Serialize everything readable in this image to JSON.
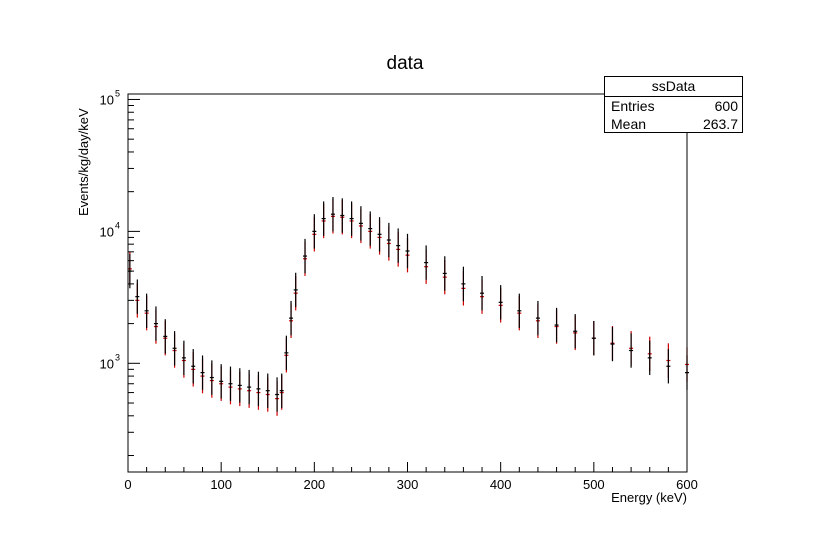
{
  "chart_data": {
    "type": "scatter",
    "title": "data",
    "xlabel": "Energy (keV)",
    "ylabel": "Events/kg/day/keV",
    "xlim": [
      0,
      600
    ],
    "ylim": [
      150,
      110000
    ],
    "yscale": "log",
    "x_ticks": [
      0,
      100,
      200,
      300,
      400,
      500,
      600
    ],
    "x_tick_labels": [
      "0",
      "100",
      "200",
      "300",
      "400",
      "500",
      "600"
    ],
    "y_ticks": [
      1000,
      10000,
      100000
    ],
    "y_tick_labels": [
      "10",
      "10",
      "10"
    ],
    "y_tick_exponents": [
      "3",
      "4",
      "5"
    ],
    "grid": false,
    "marker": "error-bar",
    "series": [
      {
        "color": "#000000",
        "points": [
          {
            "x": 2,
            "y": 5000
          },
          {
            "x": 10,
            "y": 3200
          },
          {
            "x": 20,
            "y": 2500
          },
          {
            "x": 30,
            "y": 2000
          },
          {
            "x": 40,
            "y": 1600
          },
          {
            "x": 50,
            "y": 1300
          },
          {
            "x": 60,
            "y": 1100
          },
          {
            "x": 70,
            "y": 950
          },
          {
            "x": 80,
            "y": 850
          },
          {
            "x": 90,
            "y": 780
          },
          {
            "x": 100,
            "y": 730
          },
          {
            "x": 110,
            "y": 700
          },
          {
            "x": 120,
            "y": 680
          },
          {
            "x": 130,
            "y": 660
          },
          {
            "x": 140,
            "y": 640
          },
          {
            "x": 150,
            "y": 620
          },
          {
            "x": 160,
            "y": 580
          },
          {
            "x": 165,
            "y": 620
          },
          {
            "x": 170,
            "y": 1200
          },
          {
            "x": 175,
            "y": 2200
          },
          {
            "x": 180,
            "y": 3600
          },
          {
            "x": 190,
            "y": 6500
          },
          {
            "x": 200,
            "y": 10000
          },
          {
            "x": 210,
            "y": 12500
          },
          {
            "x": 220,
            "y": 13500
          },
          {
            "x": 230,
            "y": 13200
          },
          {
            "x": 240,
            "y": 12500
          },
          {
            "x": 250,
            "y": 11500
          },
          {
            "x": 260,
            "y": 10500
          },
          {
            "x": 270,
            "y": 9500
          },
          {
            "x": 280,
            "y": 8600
          },
          {
            "x": 290,
            "y": 7800
          },
          {
            "x": 300,
            "y": 7100
          },
          {
            "x": 320,
            "y": 5800
          },
          {
            "x": 340,
            "y": 4800
          },
          {
            "x": 360,
            "y": 4000
          },
          {
            "x": 380,
            "y": 3400
          },
          {
            "x": 400,
            "y": 2900
          },
          {
            "x": 420,
            "y": 2500
          },
          {
            "x": 440,
            "y": 2200
          },
          {
            "x": 460,
            "y": 1950
          },
          {
            "x": 480,
            "y": 1750
          },
          {
            "x": 500,
            "y": 1550
          },
          {
            "x": 520,
            "y": 1400
          },
          {
            "x": 540,
            "y": 1250
          },
          {
            "x": 560,
            "y": 1100
          },
          {
            "x": 580,
            "y": 950
          },
          {
            "x": 600,
            "y": 850
          }
        ]
      },
      {
        "color": "#cc0000",
        "points": [
          {
            "x": 2,
            "y": 5200
          },
          {
            "x": 10,
            "y": 3000
          },
          {
            "x": 20,
            "y": 2400
          },
          {
            "x": 30,
            "y": 1900
          },
          {
            "x": 40,
            "y": 1550
          },
          {
            "x": 50,
            "y": 1250
          },
          {
            "x": 60,
            "y": 1050
          },
          {
            "x": 70,
            "y": 900
          },
          {
            "x": 80,
            "y": 800
          },
          {
            "x": 90,
            "y": 740
          },
          {
            "x": 100,
            "y": 700
          },
          {
            "x": 110,
            "y": 660
          },
          {
            "x": 120,
            "y": 640
          },
          {
            "x": 130,
            "y": 620
          },
          {
            "x": 140,
            "y": 600
          },
          {
            "x": 150,
            "y": 580
          },
          {
            "x": 160,
            "y": 540
          },
          {
            "x": 165,
            "y": 600
          },
          {
            "x": 170,
            "y": 1150
          },
          {
            "x": 175,
            "y": 2100
          },
          {
            "x": 180,
            "y": 3400
          },
          {
            "x": 190,
            "y": 6200
          },
          {
            "x": 200,
            "y": 9500
          },
          {
            "x": 210,
            "y": 12000
          },
          {
            "x": 220,
            "y": 13000
          },
          {
            "x": 230,
            "y": 12800
          },
          {
            "x": 240,
            "y": 12000
          },
          {
            "x": 250,
            "y": 11000
          },
          {
            "x": 260,
            "y": 10000
          },
          {
            "x": 270,
            "y": 9000
          },
          {
            "x": 280,
            "y": 8100
          },
          {
            "x": 290,
            "y": 7300
          },
          {
            "x": 300,
            "y": 6600
          },
          {
            "x": 320,
            "y": 5400
          },
          {
            "x": 340,
            "y": 4500
          },
          {
            "x": 360,
            "y": 3700
          },
          {
            "x": 380,
            "y": 3200
          },
          {
            "x": 400,
            "y": 2750
          },
          {
            "x": 420,
            "y": 2400
          },
          {
            "x": 440,
            "y": 2100
          },
          {
            "x": 460,
            "y": 1900
          },
          {
            "x": 480,
            "y": 1700
          },
          {
            "x": 500,
            "y": 1550
          },
          {
            "x": 520,
            "y": 1420
          },
          {
            "x": 540,
            "y": 1300
          },
          {
            "x": 560,
            "y": 1180
          },
          {
            "x": 580,
            "y": 1050
          },
          {
            "x": 600,
            "y": 980
          }
        ]
      }
    ]
  },
  "stats": {
    "title": "ssData",
    "entries_label": "Entries",
    "entries_value": "600",
    "mean_label": "Mean",
    "mean_value": "263.7"
  }
}
